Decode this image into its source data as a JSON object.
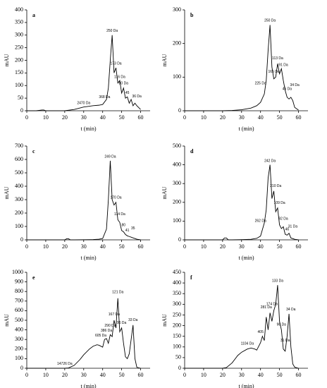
{
  "chart_data": [
    {
      "type": "line",
      "title": "a",
      "xlabel": "t (min)",
      "ylabel": "mAU",
      "color": "#000000",
      "x": [
        0,
        5,
        8,
        9,
        10,
        15,
        20,
        25,
        30,
        35,
        38,
        40,
        42,
        43,
        44,
        45,
        46,
        47,
        48,
        49,
        50,
        51,
        52,
        53,
        54,
        55,
        56,
        57,
        58,
        60
      ],
      "values": [
        0,
        0,
        3,
        3,
        0,
        0,
        0,
        5,
        15,
        20,
        22,
        25,
        45,
        90,
        200,
        300,
        150,
        170,
        110,
        120,
        70,
        90,
        50,
        55,
        30,
        45,
        20,
        30,
        20,
        5
      ],
      "xlim": [
        0,
        65
      ],
      "xticks": [
        0,
        10,
        20,
        30,
        40,
        50,
        60
      ],
      "ylim": [
        0,
        400
      ],
      "yticks": [
        0,
        50,
        100,
        150,
        200,
        250,
        300,
        350,
        400
      ],
      "annotations": [
        {
          "text": "2470 Da",
          "x": 30,
          "y": 22
        },
        {
          "text": "368 Da",
          "x": 41,
          "y": 45
        },
        {
          "text": "250 Da",
          "x": 45,
          "y": 308
        },
        {
          "text": "173 Da",
          "x": 47,
          "y": 178
        },
        {
          "text": "116 Da",
          "x": 49,
          "y": 125
        },
        {
          "text": "80 Da",
          "x": 51,
          "y": 100
        },
        {
          "text": "45",
          "x": 53,
          "y": 62
        },
        {
          "text": "36 Da",
          "x": 58,
          "y": 48
        }
      ]
    },
    {
      "type": "line",
      "title": "b",
      "xlabel": "t (min)",
      "ylabel": "mAU",
      "color": "#000000",
      "x": [
        0,
        5,
        10,
        15,
        20,
        25,
        30,
        35,
        38,
        40,
        42,
        43,
        44,
        45,
        46,
        47,
        48,
        49,
        50,
        51,
        52,
        53,
        54,
        55,
        56,
        57,
        58,
        60
      ],
      "values": [
        0,
        0,
        0,
        0,
        0,
        1,
        3,
        8,
        15,
        25,
        50,
        90,
        180,
        255,
        130,
        95,
        100,
        140,
        110,
        125,
        90,
        60,
        40,
        35,
        40,
        30,
        10,
        2
      ],
      "xlim": [
        0,
        65
      ],
      "xticks": [
        0,
        10,
        20,
        30,
        40,
        50,
        60
      ],
      "ylim": [
        0,
        300
      ],
      "yticks": [
        0,
        100,
        200,
        300
      ],
      "annotations": [
        {
          "text": "225 Da",
          "x": 40,
          "y": 75
        },
        {
          "text": "250 Da",
          "x": 45,
          "y": 262
        },
        {
          "text": "165 Da",
          "x": 47,
          "y": 110
        },
        {
          "text": "113 Da",
          "x": 49,
          "y": 150
        },
        {
          "text": "91 Da",
          "x": 52,
          "y": 130
        },
        {
          "text": "45 Da",
          "x": 54,
          "y": 58
        },
        {
          "text": "34 Da",
          "x": 58,
          "y": 70
        }
      ]
    },
    {
      "type": "line",
      "title": "c",
      "xlabel": "t (min)",
      "ylabel": "mAU",
      "color": "#000000",
      "x": [
        0,
        5,
        10,
        15,
        20,
        21,
        22,
        23,
        25,
        30,
        35,
        38,
        40,
        42,
        43,
        44,
        45,
        46,
        47,
        48,
        49,
        50,
        51,
        52,
        53,
        54,
        55,
        56,
        58,
        60
      ],
      "values": [
        0,
        0,
        0,
        0,
        0,
        8,
        8,
        0,
        0,
        1,
        2,
        5,
        10,
        80,
        300,
        590,
        300,
        260,
        280,
        150,
        130,
        70,
        60,
        40,
        30,
        25,
        20,
        15,
        5,
        0
      ],
      "xlim": [
        0,
        65
      ],
      "xticks": [
        0,
        10,
        20,
        30,
        40,
        50,
        60
      ],
      "ylim": [
        0,
        700
      ],
      "yticks": [
        0,
        100,
        200,
        300,
        400,
        500,
        600,
        700
      ],
      "annotations": [
        {
          "text": "249 Da",
          "x": 44,
          "y": 605
        },
        {
          "text": "170 Da",
          "x": 47,
          "y": 300
        },
        {
          "text": "114 Da",
          "x": 49,
          "y": 175
        },
        {
          "text": "80",
          "x": 51,
          "y": 95
        },
        {
          "text": "41",
          "x": 53,
          "y": 55
        },
        {
          "text": "35",
          "x": 56,
          "y": 70
        }
      ]
    },
    {
      "type": "line",
      "title": "d",
      "xlabel": "t (min)",
      "ylabel": "mAU",
      "color": "#000000",
      "x": [
        0,
        5,
        10,
        15,
        20,
        21,
        22,
        23,
        25,
        30,
        35,
        38,
        40,
        42,
        43,
        44,
        45,
        46,
        47,
        48,
        49,
        50,
        51,
        52,
        53,
        54,
        55,
        56,
        58,
        60
      ],
      "values": [
        0,
        0,
        0,
        0,
        0,
        10,
        10,
        0,
        0,
        1,
        3,
        8,
        20,
        90,
        160,
        330,
        400,
        220,
        260,
        150,
        170,
        80,
        60,
        70,
        30,
        25,
        35,
        10,
        3,
        0
      ],
      "xlim": [
        0,
        65
      ],
      "xticks": [
        0,
        10,
        20,
        30,
        40,
        50,
        60
      ],
      "ylim": [
        0,
        500
      ],
      "yticks": [
        0,
        100,
        200,
        300,
        400,
        500
      ],
      "annotations": [
        {
          "text": "262 Da",
          "x": 40,
          "y": 90
        },
        {
          "text": "242 Da",
          "x": 45,
          "y": 410
        },
        {
          "text": "210 Da",
          "x": 48,
          "y": 275
        },
        {
          "text": "109 Da",
          "x": 50,
          "y": 185
        },
        {
          "text": "92 Da",
          "x": 52,
          "y": 100
        },
        {
          "text": "46",
          "x": 54,
          "y": 45
        },
        {
          "text": "31 Da",
          "x": 57,
          "y": 60
        }
      ]
    },
    {
      "type": "line",
      "title": "e",
      "xlabel": "t (min)",
      "ylabel": "mAU",
      "color": "#000000",
      "x": [
        0,
        10,
        15,
        20,
        22,
        25,
        28,
        30,
        33,
        35,
        37,
        38,
        40,
        41,
        42,
        43,
        44,
        45,
        46,
        47,
        48,
        49,
        50,
        51,
        52,
        53,
        54,
        55,
        56,
        57,
        58,
        60
      ],
      "values": [
        0,
        0,
        0,
        0,
        3,
        30,
        90,
        140,
        200,
        230,
        245,
        240,
        220,
        300,
        310,
        260,
        350,
        330,
        500,
        420,
        730,
        380,
        420,
        260,
        120,
        100,
        150,
        300,
        450,
        100,
        10,
        0
      ],
      "xlim": [
        0,
        65
      ],
      "xticks": [
        0,
        10,
        20,
        30,
        40,
        50,
        60
      ],
      "ylim": [
        0,
        1000
      ],
      "yticks": [
        0,
        100,
        200,
        300,
        400,
        500,
        600,
        700,
        800,
        900,
        1000
      ],
      "annotations": [
        {
          "text": "14726 Da",
          "x": 20,
          "y": 25
        },
        {
          "text": "605 Da",
          "x": 39,
          "y": 320
        },
        {
          "text": "386 Da",
          "x": 42,
          "y": 370
        },
        {
          "text": "290 Da",
          "x": 44,
          "y": 420
        },
        {
          "text": "167 Da",
          "x": 46,
          "y": 540
        },
        {
          "text": "121 Da",
          "x": 48,
          "y": 770
        },
        {
          "text": "96 Da",
          "x": 50,
          "y": 450
        },
        {
          "text": "33 Da",
          "x": 56,
          "y": 480
        }
      ]
    },
    {
      "type": "line",
      "title": "f",
      "xlabel": "t (min)",
      "ylabel": "mAU",
      "color": "#000000",
      "x": [
        0,
        10,
        20,
        22,
        25,
        28,
        30,
        33,
        35,
        37,
        38,
        40,
        41,
        42,
        43,
        44,
        45,
        46,
        47,
        48,
        49,
        50,
        51,
        52,
        53,
        54,
        55,
        56,
        57,
        58,
        60
      ],
      "values": [
        0,
        0,
        0,
        3,
        25,
        60,
        75,
        90,
        95,
        90,
        85,
        120,
        150,
        130,
        240,
        180,
        260,
        220,
        270,
        300,
        390,
        220,
        180,
        90,
        80,
        150,
        255,
        100,
        20,
        5,
        0
      ],
      "xlim": [
        0,
        65
      ],
      "xticks": [
        0,
        10,
        20,
        30,
        40,
        50,
        60
      ],
      "ylim": [
        0,
        450
      ],
      "yticks": [
        0,
        50,
        100,
        150,
        200,
        250,
        300,
        350,
        400,
        450
      ],
      "annotations": [
        {
          "text": "1104 Da",
          "x": 33,
          "y": 105
        },
        {
          "text": "405",
          "x": 40,
          "y": 160
        },
        {
          "text": "281 Da",
          "x": 43,
          "y": 275
        },
        {
          "text": "174 Da",
          "x": 46,
          "y": 290
        },
        {
          "text": "133 Da",
          "x": 49,
          "y": 400
        },
        {
          "text": "96 Da",
          "x": 51,
          "y": 195
        },
        {
          "text": "31 Da",
          "x": 53,
          "y": 120
        },
        {
          "text": "34 Da",
          "x": 56,
          "y": 265
        }
      ]
    }
  ]
}
